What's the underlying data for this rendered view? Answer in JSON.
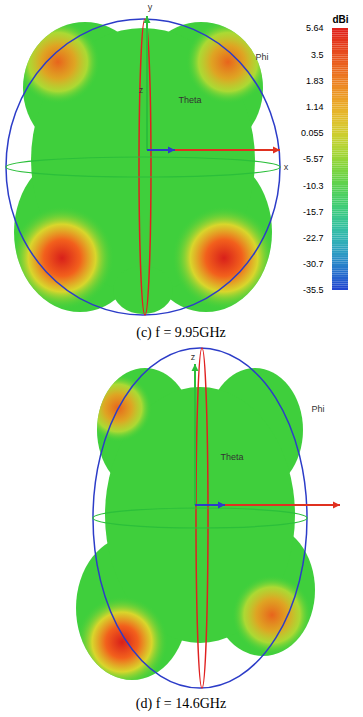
{
  "chart_data": [
    {
      "type": "radiation_pattern",
      "caption": "(c) f = 9.95GHz",
      "axis_labels": [
        "y",
        "z",
        "Theta",
        "Phi",
        "x"
      ],
      "colorbar": {
        "title": "dBi",
        "ticks": [
          5.64,
          3.5,
          1.83,
          1.14,
          0.055,
          -5.57,
          -10.3,
          -15.7,
          -22.7,
          -30.7,
          -35.5
        ]
      }
    },
    {
      "type": "radiation_pattern",
      "caption": "(d) f = 14.6GHz",
      "axis_labels": [
        "z",
        "Theta",
        "Phi"
      ]
    }
  ]
}
